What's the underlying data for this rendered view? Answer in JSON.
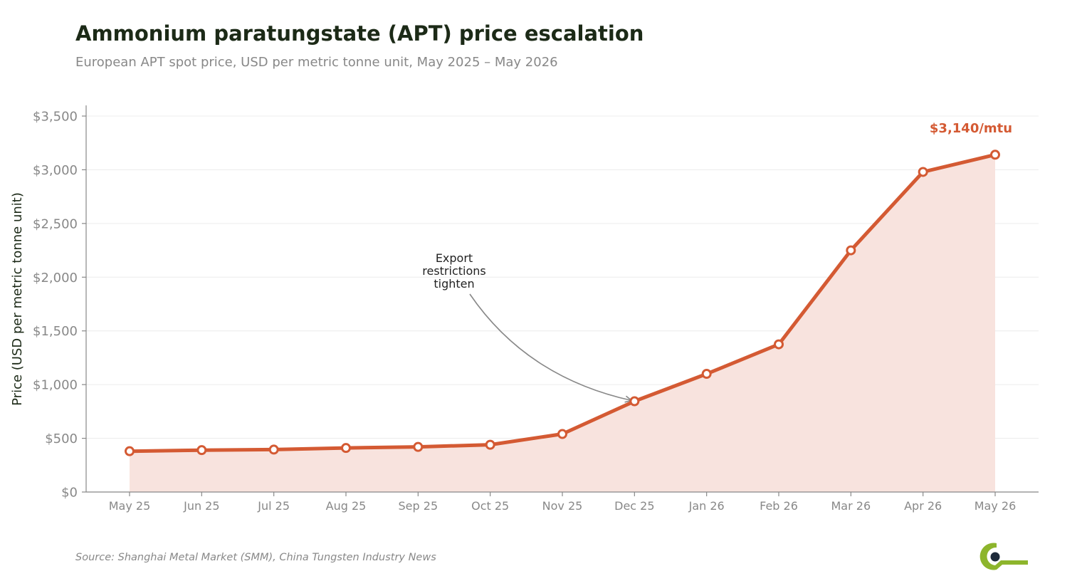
{
  "colors": {
    "line": "#d45a33",
    "fill": "#f8e3de",
    "grid": "#ececec",
    "axis": "#888888",
    "text_muted": "#888888",
    "title": "#1c2a17",
    "logo_green": "#8db52c",
    "logo_dark": "#1e2a3a"
  },
  "chart_data": {
    "type": "area",
    "title": "Ammonium paratungstate (APT) price escalation",
    "subtitle": "European APT spot price, USD per metric tonne unit, May 2025 – May 2026",
    "xlabel": "",
    "ylabel": "Price (USD per metric tonne unit)",
    "ylim": [
      0,
      3600
    ],
    "yticks": [
      0,
      500,
      1000,
      1500,
      2000,
      2500,
      3000,
      3500
    ],
    "ytick_labels": [
      "$0",
      "$500",
      "$1,000",
      "$1,500",
      "$2,000",
      "$2,500",
      "$3,000",
      "$3,500"
    ],
    "categories": [
      "May 25",
      "Jun 25",
      "Jul 25",
      "Aug 25",
      "Sep 25",
      "Oct 25",
      "Nov 25",
      "Dec 25",
      "Jan 26",
      "Feb 26",
      "Mar 26",
      "Apr 26",
      "May 26"
    ],
    "series": [
      {
        "values": [
          380,
          390,
          395,
          410,
          420,
          440,
          540,
          845,
          1100,
          1375,
          2250,
          2980,
          3140
        ]
      }
    ],
    "grid": true,
    "legend": "none",
    "annotations": [
      {
        "lines": [
          "Export",
          "restrictions",
          "tighten"
        ],
        "target_category": "Dec 25",
        "target_value": 845
      }
    ],
    "end_label": "$3,140/mtu",
    "source": "Source: Shanghai Metal Market (SMM), China Tungsten Industry News"
  }
}
